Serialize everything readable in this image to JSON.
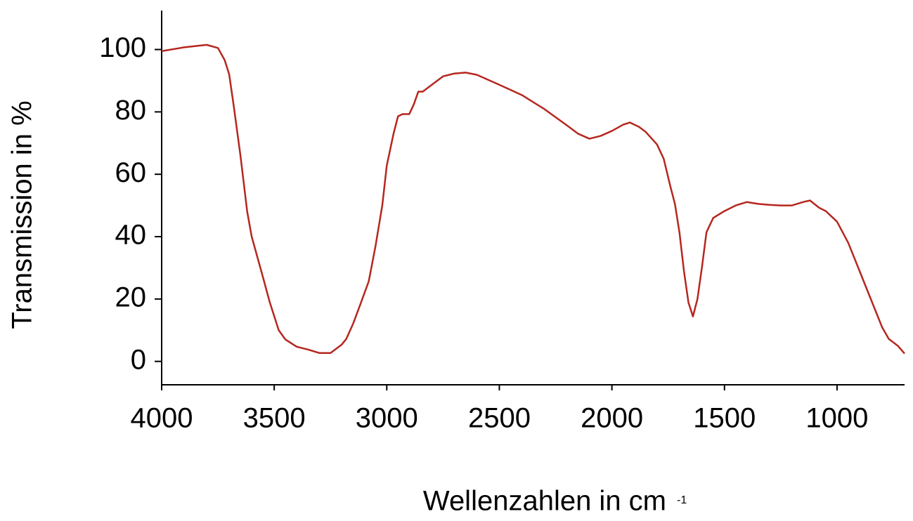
{
  "chart_data": {
    "type": "line",
    "xlabel": "Wellenzahlen in cm",
    "xlabel_superscript": "-1",
    "ylabel": "Transmission in %",
    "xlim": [
      4000,
      700
    ],
    "ylim": [
      -7.5,
      112.5
    ],
    "xticks": [
      4000,
      3500,
      3000,
      2500,
      2000,
      1500,
      1000
    ],
    "yticks": [
      0,
      20,
      40,
      60,
      80,
      100
    ],
    "grid": false,
    "x": [
      4000,
      3900,
      3800,
      3750,
      3720,
      3700,
      3680,
      3650,
      3620,
      3600,
      3550,
      3520,
      3480,
      3450,
      3400,
      3350,
      3300,
      3250,
      3200,
      3180,
      3150,
      3120,
      3080,
      3050,
      3020,
      3000,
      2970,
      2950,
      2930,
      2900,
      2880,
      2860,
      2840,
      2800,
      2750,
      2700,
      2650,
      2600,
      2500,
      2400,
      2300,
      2200,
      2150,
      2100,
      2050,
      2000,
      1950,
      1920,
      1880,
      1850,
      1800,
      1770,
      1740,
      1720,
      1700,
      1680,
      1660,
      1640,
      1620,
      1600,
      1580,
      1550,
      1500,
      1450,
      1400,
      1350,
      1300,
      1250,
      1200,
      1150,
      1120,
      1080,
      1050,
      1000,
      950,
      900,
      850,
      800,
      770,
      730,
      700
    ],
    "series": [
      {
        "color": "#b5271f",
        "values": [
          99.5,
          100.7,
          101.5,
          100.5,
          96.6,
          92,
          82,
          66,
          48,
          40,
          27,
          19,
          10,
          7,
          4.7,
          3.8,
          2.7,
          2.7,
          5.4,
          7.2,
          12,
          17.8,
          25.7,
          37,
          50,
          62.8,
          73,
          78.6,
          79.3,
          79.3,
          82.4,
          86.5,
          86.5,
          88.7,
          91.4,
          92.3,
          92.6,
          91.9,
          88.7,
          85.4,
          80.9,
          75.7,
          73,
          71.4,
          72.3,
          73.9,
          75.9,
          76.6,
          75.2,
          73.6,
          69.6,
          65,
          56,
          50.5,
          41.4,
          29,
          18.9,
          14.4,
          20,
          30.2,
          41.4,
          46,
          48.2,
          50,
          51.1,
          50.5,
          50.2,
          50,
          50,
          51.1,
          51.6,
          49.3,
          48.2,
          44.8,
          38,
          29,
          20,
          11,
          7.2,
          5,
          2.5
        ]
      }
    ]
  }
}
